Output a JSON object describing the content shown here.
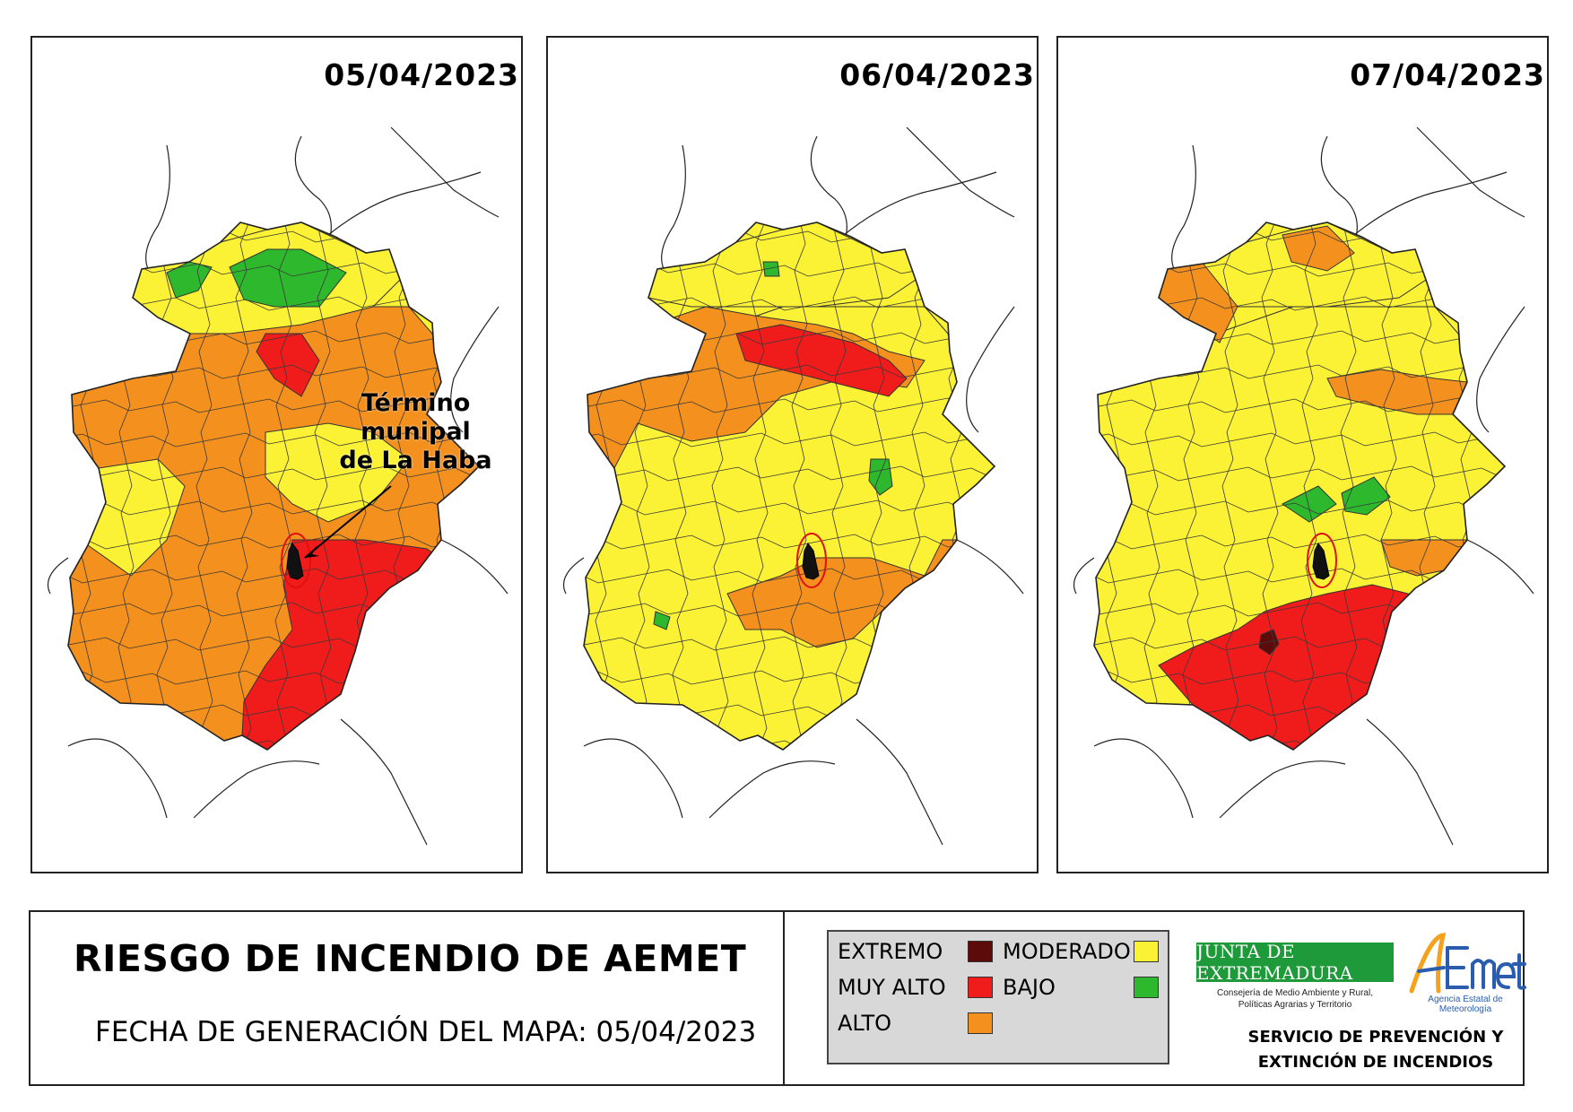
{
  "maps": [
    {
      "date": "05/04/2023",
      "scenario": "day1"
    },
    {
      "date": "06/04/2023",
      "scenario": "day2"
    },
    {
      "date": "07/04/2023",
      "scenario": "day3"
    }
  ],
  "annotation": {
    "line1": "Término munipal",
    "line2": "de La Haba"
  },
  "footer": {
    "title": "RIESGO DE INCENDIO DE AEMET",
    "generation_date": "FECHA DE GENERACIÓN DEL MAPA: 05/04/2023"
  },
  "legend": {
    "items": [
      {
        "label": "EXTREMO",
        "color": "#5c0a0a"
      },
      {
        "label": "MUY ALTO",
        "color": "#f01c1c"
      },
      {
        "label": "ALTO",
        "color": "#f4911e"
      },
      {
        "label": "MODERADO",
        "color": "#fbf235"
      },
      {
        "label": "BAJO",
        "color": "#2eb82e"
      }
    ]
  },
  "logos": {
    "junta": "JUNTA DE EXTREMADURA",
    "junta_sub": "Consejería de Medio Ambiente y Rural, Políticas Agrarias y Territorio",
    "aemet": "AEMet",
    "aemet_sub": "Agencia Estatal de Meteorología"
  },
  "service": {
    "line1": "SERVICIO DE PREVENCIÓN Y",
    "line2": "EXTINCIÓN DE INCENDIOS"
  }
}
